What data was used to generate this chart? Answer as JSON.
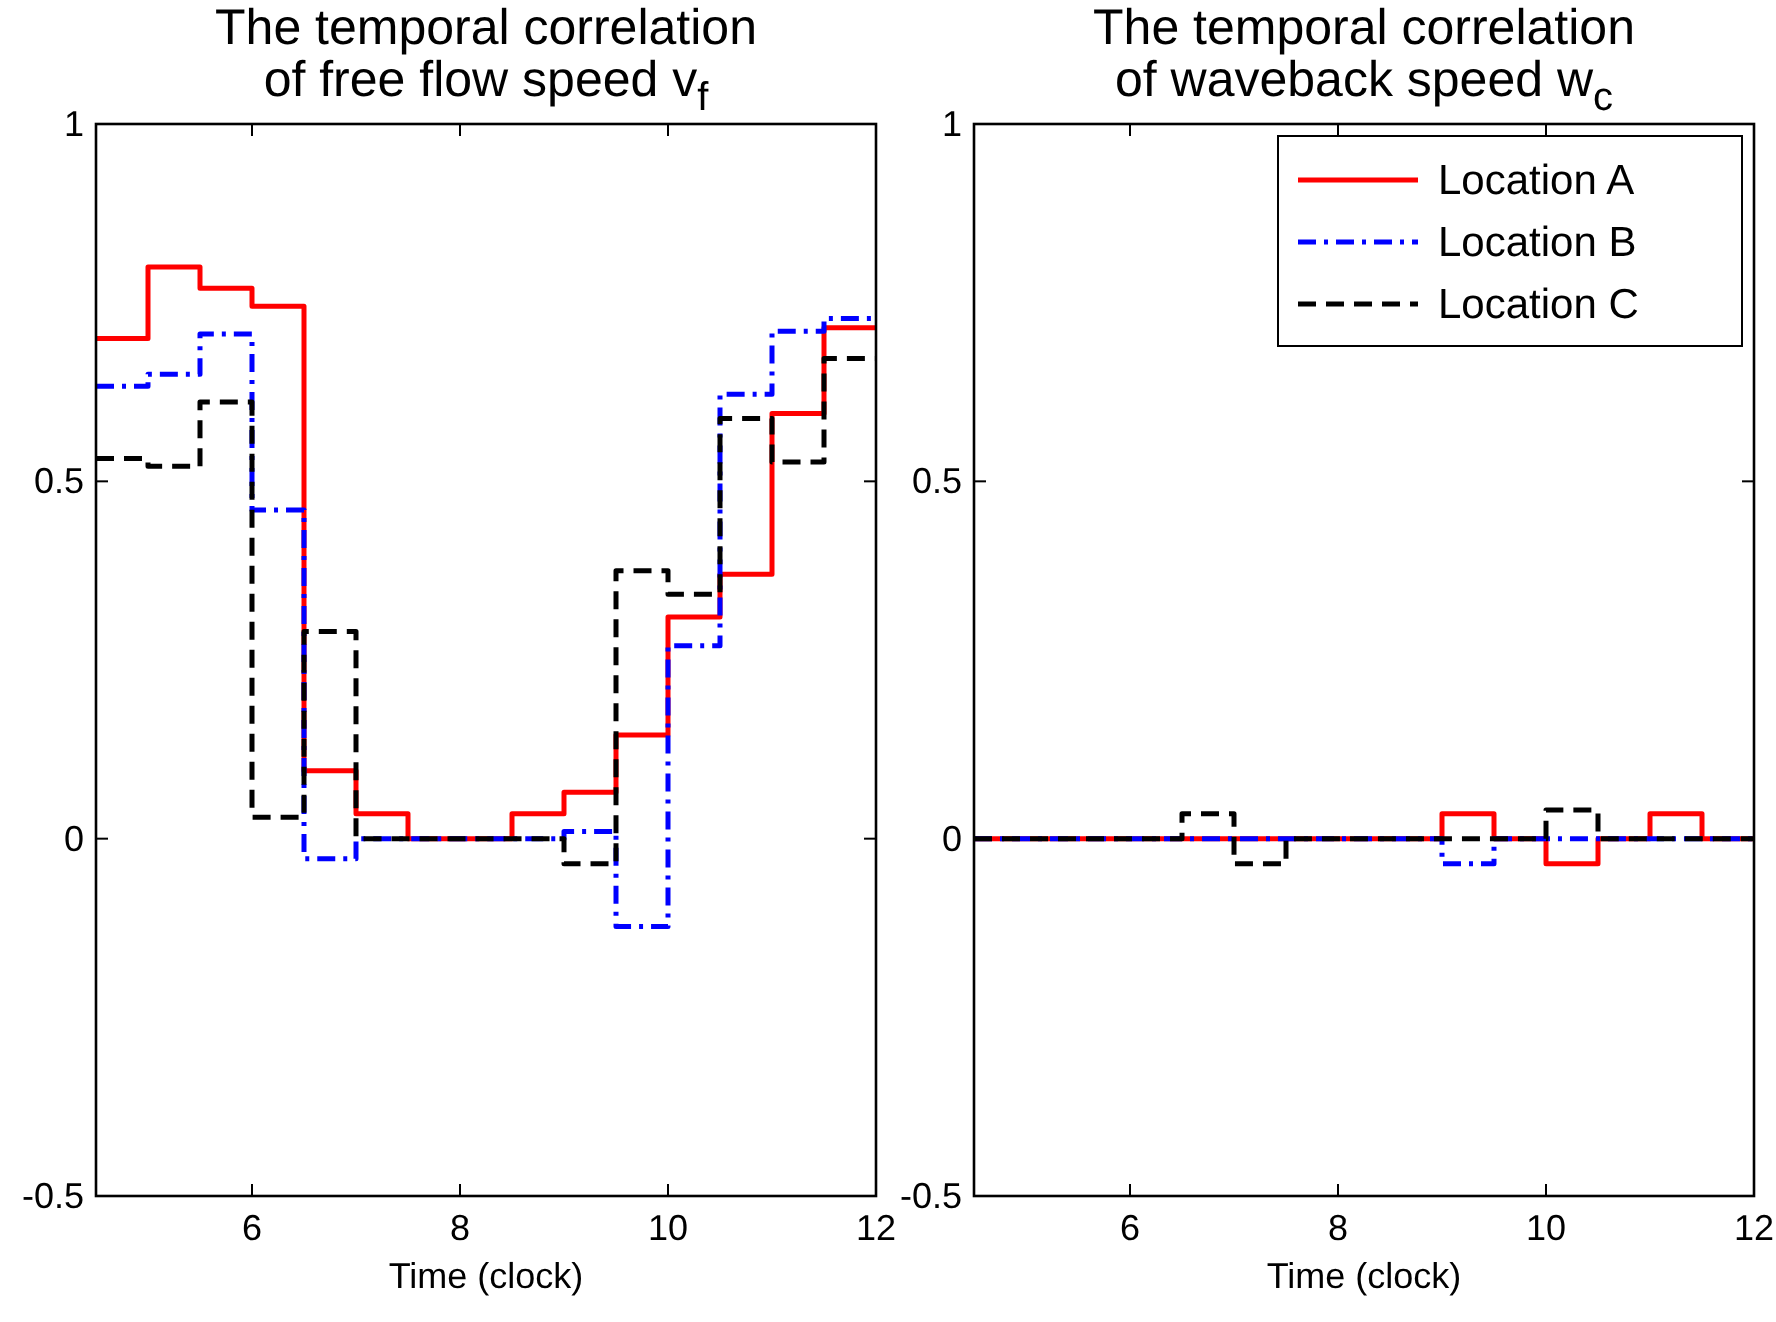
{
  "chart_data": [
    {
      "type": "step",
      "title": "The temporal correlation\nof free flow speed v$_{f}$",
      "xlabel": "Time (clock)",
      "xlim": [
        4.5,
        12
      ],
      "xticks": [
        6,
        8,
        10,
        12
      ],
      "ylim": [
        -0.5,
        1
      ],
      "yticks": [
        -0.5,
        0,
        0.5,
        1
      ],
      "grid": false,
      "legend": false,
      "marker": "none",
      "x": [
        4.5,
        5,
        5.5,
        6,
        6.5,
        7,
        7.5,
        8,
        8.5,
        9,
        9.5,
        10,
        10.5,
        11,
        11.5,
        12
      ],
      "series": [
        {
          "color": "#ff0000",
          "line_style": "solid",
          "values": [
            0.7,
            0.8,
            0.77,
            0.745,
            0.095,
            0.035,
            0,
            0,
            0.035,
            0.065,
            0.145,
            0.31,
            0.37,
            0.595,
            0.715,
            0.715
          ]
        },
        {
          "color": "#0000ff",
          "line_style": "dashdot",
          "values": [
            0.633,
            0.65,
            0.706,
            0.46,
            -0.028,
            0,
            0,
            0,
            0,
            0.01,
            -0.123,
            0.27,
            0.622,
            0.71,
            0.728,
            0.728
          ]
        },
        {
          "color": "#000000",
          "line_style": "dashed",
          "values": [
            0.532,
            0.521,
            0.611,
            0.03,
            0.29,
            0,
            0,
            0,
            0,
            -0.035,
            0.375,
            0.342,
            0.588,
            0.527,
            0.672,
            0.672
          ]
        }
      ]
    },
    {
      "type": "step",
      "title": "The temporal correlation\nof waveback speed w$_{c}$",
      "xlabel": "Time (clock)",
      "xlim": [
        4.5,
        12
      ],
      "xticks": [
        6,
        8,
        10,
        12
      ],
      "ylim": [
        -0.5,
        1
      ],
      "yticks": [
        -0.5,
        0,
        0.5,
        1
      ],
      "grid": false,
      "legend": "top right",
      "marker": "none",
      "x": [
        4.5,
        5,
        5.5,
        6,
        6.5,
        7,
        7.5,
        8,
        8.5,
        9,
        9.5,
        10,
        10.5,
        11,
        11.5,
        12
      ],
      "series": [
        {
          "name": "Location A",
          "color": "#ff0000",
          "line_style": "solid",
          "values": [
            0,
            0,
            0,
            0,
            0,
            0,
            0,
            0,
            0,
            0.035,
            0,
            -0.035,
            0,
            0.035,
            0,
            0
          ]
        },
        {
          "name": "Location B",
          "color": "#0000ff",
          "line_style": "dashdot",
          "values": [
            0,
            0,
            0,
            0,
            0,
            0,
            0,
            0,
            0,
            -0.035,
            0,
            0,
            0,
            0,
            0,
            0
          ]
        },
        {
          "name": "Location C",
          "color": "#000000",
          "line_style": "dashed",
          "values": [
            0,
            0,
            0,
            0,
            0.035,
            -0.035,
            0,
            0,
            0,
            0,
            0,
            0.04,
            0,
            0,
            0,
            0
          ]
        }
      ]
    }
  ]
}
